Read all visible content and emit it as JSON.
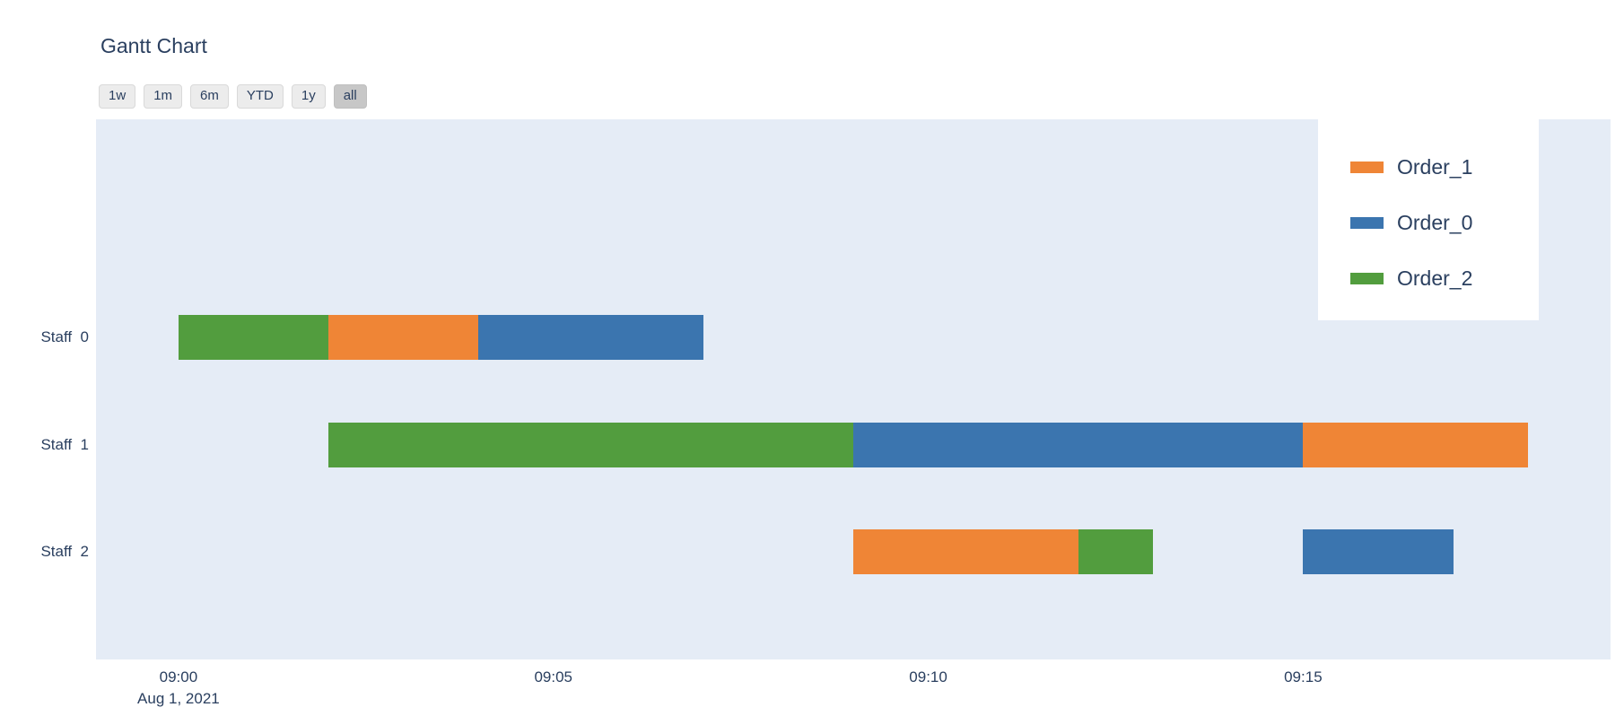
{
  "title": "Gantt Chart",
  "range_selector": {
    "buttons": [
      "1w",
      "1m",
      "6m",
      "YTD",
      "1y",
      "all"
    ],
    "active": "all"
  },
  "legend": {
    "items": [
      {
        "label": "Order_1",
        "color": "#ef8536"
      },
      {
        "label": "Order_0",
        "color": "#3b75af"
      },
      {
        "label": "Order_2",
        "color": "#529d3e"
      }
    ]
  },
  "chart_data": {
    "type": "gantt",
    "title": "Gantt Chart",
    "date_label": "Aug 1, 2021",
    "x_ticks": [
      "09:00",
      "09:05",
      "09:10",
      "09:15"
    ],
    "x_range_minutes_from_0900": [
      -1.1,
      19.1
    ],
    "rows": [
      "Staff  0",
      "Staff  1",
      "Staff  2"
    ],
    "colors": {
      "Order_1": "#ef8536",
      "Order_0": "#3b75af",
      "Order_2": "#529d3e"
    },
    "tasks": [
      {
        "row": "Staff  0",
        "order": "Order_2",
        "start": "09:00",
        "end": "09:02"
      },
      {
        "row": "Staff  0",
        "order": "Order_1",
        "start": "09:02",
        "end": "09:04"
      },
      {
        "row": "Staff  0",
        "order": "Order_0",
        "start": "09:04",
        "end": "09:07"
      },
      {
        "row": "Staff  1",
        "order": "Order_2",
        "start": "09:02",
        "end": "09:09"
      },
      {
        "row": "Staff  1",
        "order": "Order_0",
        "start": "09:09",
        "end": "09:15"
      },
      {
        "row": "Staff  1",
        "order": "Order_1",
        "start": "09:15",
        "end": "09:18"
      },
      {
        "row": "Staff  2",
        "order": "Order_1",
        "start": "09:09",
        "end": "09:12"
      },
      {
        "row": "Staff  2",
        "order": "Order_2",
        "start": "09:12",
        "end": "09:13"
      },
      {
        "row": "Staff  2",
        "order": "Order_0",
        "start": "09:15",
        "end": "09:17"
      }
    ],
    "legend_entries": [
      "Order_1",
      "Order_0",
      "Order_2"
    ],
    "grid": false,
    "legend_position": "top-right-inside"
  }
}
